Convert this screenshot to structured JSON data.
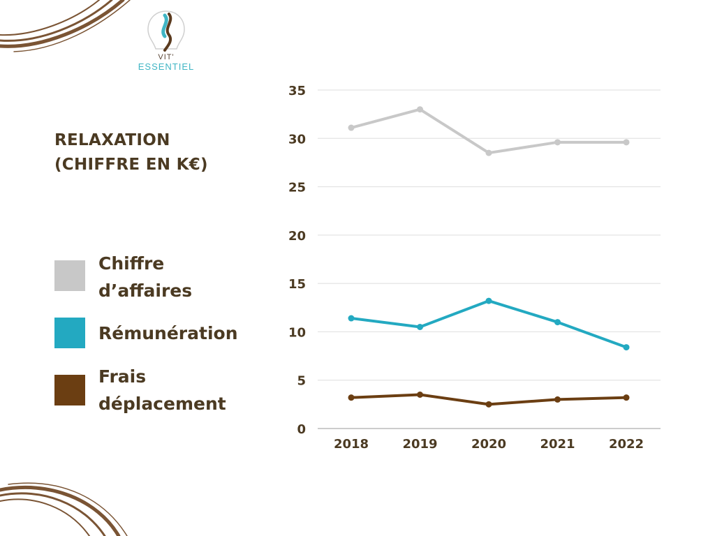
{
  "logo": {
    "line1": "VIT'",
    "line2": "ESSENTIEL"
  },
  "chart_data": {
    "type": "line",
    "title_lines": [
      "RELAXATION",
      "(CHIFFRE EN K€)"
    ],
    "categories": [
      "2018",
      "2019",
      "2020",
      "2021",
      "2022"
    ],
    "ylim": [
      0,
      35
    ],
    "yticks": [
      0,
      5,
      10,
      15,
      20,
      25,
      30,
      35
    ],
    "grid": true,
    "legend_position": "left",
    "series": [
      {
        "name_lines": [
          "Chiffre",
          "d’affaires"
        ],
        "color": "#c8c8c8",
        "values": [
          31.1,
          33.0,
          28.5,
          29.6,
          29.6
        ]
      },
      {
        "name_lines": [
          "Rémunération"
        ],
        "color": "#23a9c1",
        "values": [
          11.4,
          10.5,
          13.2,
          11.0,
          8.4
        ]
      },
      {
        "name_lines": [
          "Frais",
          "déplacement"
        ],
        "color": "#6b3e12",
        "values": [
          3.2,
          3.5,
          2.5,
          3.0,
          3.2
        ]
      }
    ]
  }
}
